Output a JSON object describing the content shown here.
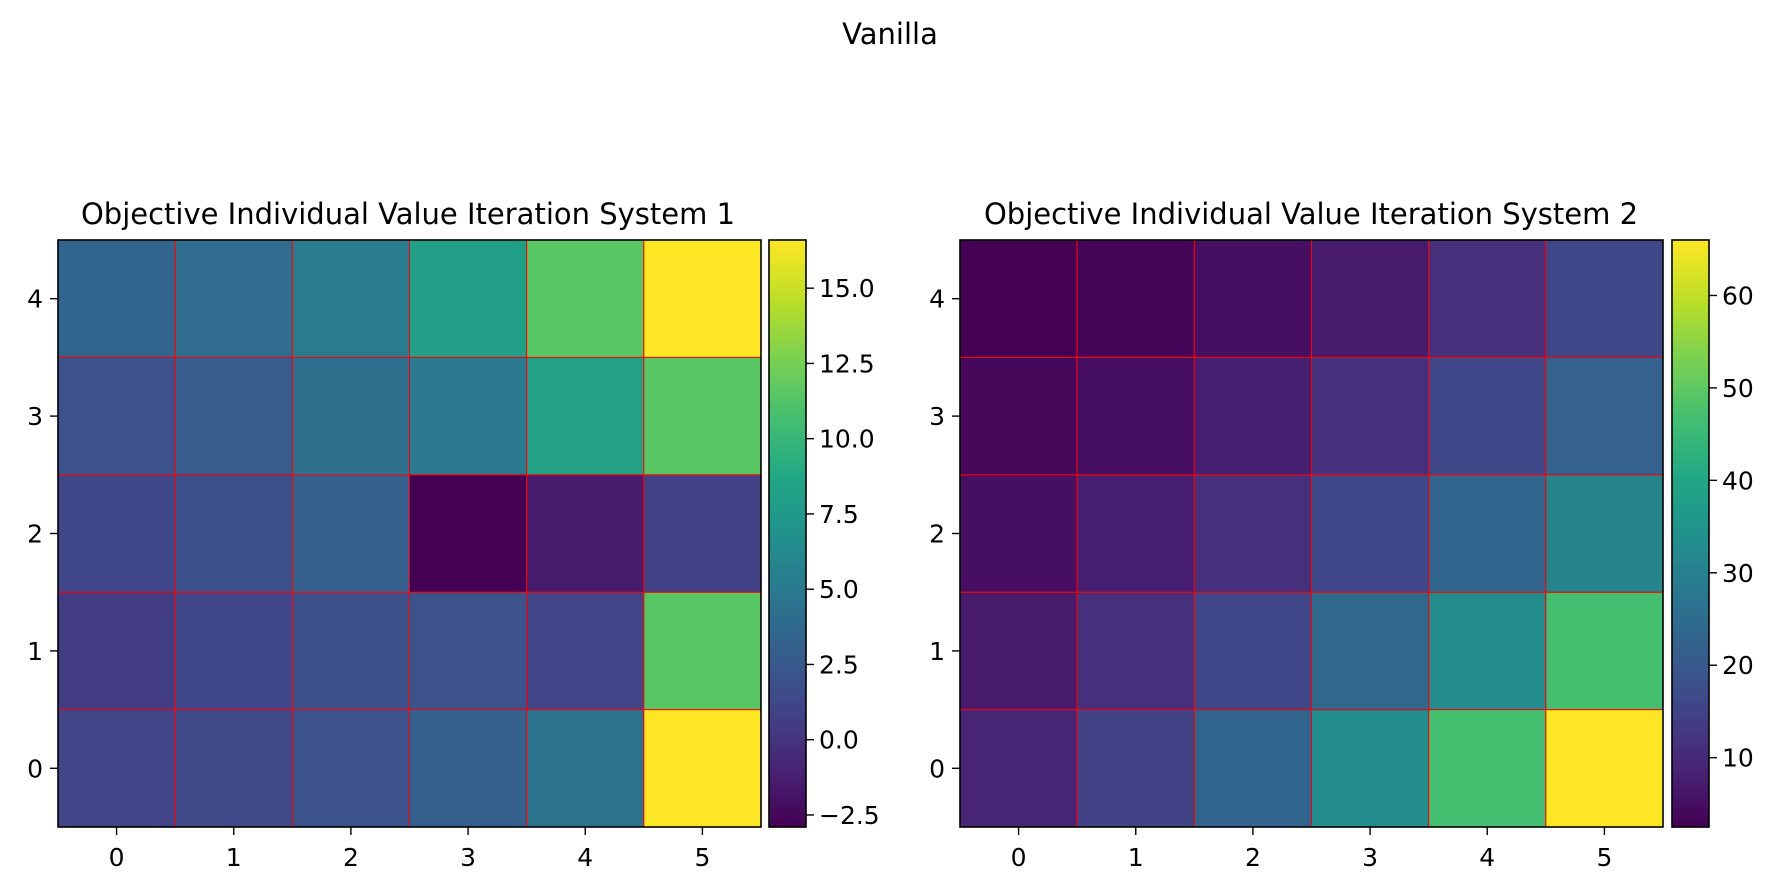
{
  "figure": {
    "suptitle": "Vanilla"
  },
  "chart_data": [
    {
      "type": "heatmap",
      "title": "Objective Individual Value Iteration System 1",
      "xlabel": "",
      "ylabel": "",
      "x": [
        0,
        1,
        2,
        3,
        4,
        5
      ],
      "y": [
        0,
        1,
        2,
        3,
        4
      ],
      "origin": "lower",
      "colormap": "viridis",
      "grid_color": "#ff0000",
      "values": [
        [
          1.0,
          1.4,
          2.0,
          3.0,
          4.5,
          16.6
        ],
        [
          0.6,
          1.2,
          1.8,
          2.0,
          1.0,
          11.5
        ],
        [
          1.2,
          1.9,
          3.0,
          -2.9,
          -1.5,
          0.8
        ],
        [
          2.0,
          2.8,
          4.2,
          5.0,
          8.2,
          11.5
        ],
        [
          3.4,
          4.0,
          5.2,
          8.0,
          11.5,
          16.6
        ]
      ],
      "vmin": -2.9,
      "vmax": 16.6,
      "colorbar_ticks": [
        -2.5,
        0.0,
        2.5,
        5.0,
        7.5,
        10.0,
        12.5,
        15.0
      ],
      "colorbar_tick_labels": [
        "−2.5",
        "0.0",
        "2.5",
        "5.0",
        "7.5",
        "10.0",
        "12.5",
        "15.0"
      ]
    },
    {
      "type": "heatmap",
      "title": "Objective Individual Value Iteration System 2",
      "xlabel": "",
      "ylabel": "",
      "x": [
        0,
        1,
        2,
        3,
        4,
        5
      ],
      "y": [
        0,
        1,
        2,
        3,
        4
      ],
      "origin": "lower",
      "colormap": "viridis",
      "grid_color": "#ff0000",
      "values": [
        [
          9.0,
          15.0,
          23.0,
          33.0,
          47.0,
          66.0
        ],
        [
          7.0,
          11.0,
          16.0,
          24.0,
          33.0,
          47.0
        ],
        [
          5.0,
          8.0,
          11.0,
          16.0,
          23.0,
          31.0
        ],
        [
          3.5,
          5.0,
          8.0,
          11.0,
          16.0,
          22.0
        ],
        [
          2.5,
          3.0,
          5.0,
          7.0,
          11.0,
          16.0
        ]
      ],
      "vmin": 2.5,
      "vmax": 66.0,
      "colorbar_ticks": [
        10,
        20,
        30,
        40,
        50,
        60
      ],
      "colorbar_tick_labels": [
        "10",
        "20",
        "30",
        "40",
        "50",
        "60"
      ]
    }
  ]
}
